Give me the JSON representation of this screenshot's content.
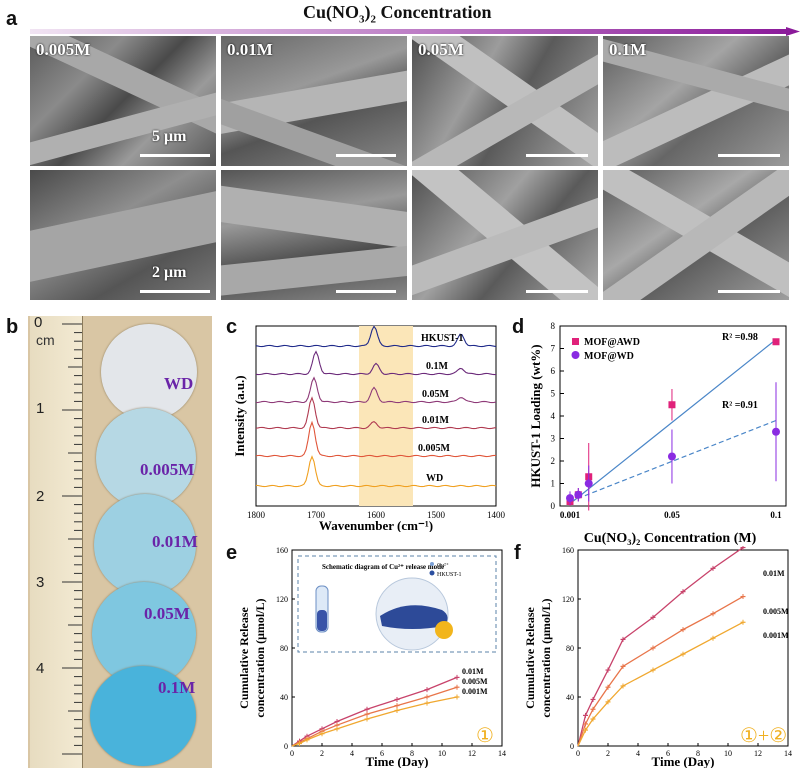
{
  "header": {
    "panel_a": "a",
    "concentration_title_prefix": "Cu(NO",
    "concentration_title_sub": "3",
    "concentration_title_mid": ")",
    "concentration_title_sub2": "2",
    "concentration_title_suffix": " Concentration",
    "arrow_color": "#8b1a9a"
  },
  "sem_panels": {
    "labels": [
      "0.005M",
      "0.01M",
      "0.05M",
      "0.1M"
    ],
    "scale_top": "5 μm",
    "scale_bottom": "2 μm"
  },
  "panel_b": {
    "letter": "b",
    "ruler_unit": "cm",
    "ruler_numbers": [
      "0",
      "1",
      "2",
      "3",
      "4"
    ],
    "discs": [
      "WD",
      "0.005M",
      "0.01M",
      "0.05M",
      "0.1M"
    ],
    "disc_colors": [
      "#e3e6ea",
      "#b6d8e4",
      "#9dd0e2",
      "#7fc7e0",
      "#49b3db"
    ],
    "label_color": "#6a24a8"
  },
  "panel_c": {
    "letter": "c",
    "ylabel": "Intensity (a.u.)",
    "xlabel": "Wavenumber (cm⁻¹)",
    "xticks": [
      "1800",
      "1700",
      "1600",
      "1500",
      "1400"
    ],
    "traces": [
      "HKUST-1",
      "0.1M",
      "0.05M",
      "0.01M",
      "0.005M",
      "WD"
    ],
    "trace_colors": [
      "#1f2a8a",
      "#6b2a7a",
      "#8e3a78",
      "#b03a50",
      "#e0563a",
      "#f0a020"
    ]
  },
  "panel_d": {
    "letter": "d",
    "ylabel": "HKUST-1 Loading (wt%)",
    "xlabel": "Cu(NO₃)₂ Concentration (M)",
    "xticks": [
      "0.001",
      "0.05",
      "0.1"
    ],
    "yticks": [
      "0",
      "1",
      "2",
      "3",
      "4",
      "5",
      "6",
      "7",
      "8"
    ],
    "legend": [
      "MOF@AWD",
      "MOF@WD"
    ],
    "r2_awd": "R² =0.98",
    "r2_wd": "R² =0.91",
    "chart_data": {
      "type": "scatter",
      "series": [
        {
          "name": "MOF@AWD",
          "color": "#e0217a",
          "x": [
            0.001,
            0.005,
            0.01,
            0.05,
            0.1
          ],
          "y": [
            0.2,
            0.5,
            1.3,
            4.5,
            7.3
          ],
          "err": [
            0.2,
            0.3,
            1.5,
            0.7,
            0.0
          ]
        },
        {
          "name": "MOF@WD",
          "color": "#8a2be2",
          "x": [
            0.001,
            0.005,
            0.01,
            0.05,
            0.1
          ],
          "y": [
            0.35,
            0.5,
            1.0,
            2.2,
            3.3
          ],
          "err": [
            0.3,
            0.3,
            0.8,
            1.2,
            2.2
          ]
        }
      ],
      "ylim": [
        0,
        8
      ]
    }
  },
  "panel_e": {
    "letter": "e",
    "ylabel1": "Cumulative Release",
    "ylabel2": "concentration  (μmol/L)",
    "xlabel": "Time (Day)",
    "inset_title": "Schematic diagram of Cu²⁺ release mode",
    "inset_legend": [
      "Cu²⁺",
      "HKUST-1"
    ],
    "mode_label": "①",
    "series_labels": [
      "0.01M",
      "0.005M",
      "0.001M"
    ]
  },
  "panel_f": {
    "letter": "f",
    "ylabel1": "Cumulative Release",
    "ylabel2": "concentration  (μmol/L)",
    "xlabel": "Time (Day)",
    "mode_label": "①+②",
    "series_labels": [
      "0.01M",
      "0.005M",
      "0.001M"
    ]
  },
  "chart_data": [
    {
      "type": "line",
      "title": "",
      "xlabel": "Time (Day)",
      "ylabel": "Cumulative Release concentration (μmol/L)",
      "xlim": [
        0,
        14
      ],
      "ylim": [
        0,
        160
      ],
      "x": [
        0,
        0.5,
        1,
        2,
        3,
        5,
        7,
        9,
        11
      ],
      "series": [
        {
          "name": "0.01M",
          "color": "#c8436b",
          "values": [
            0,
            4,
            8,
            14,
            20,
            30,
            38,
            46,
            56
          ]
        },
        {
          "name": "0.005M",
          "color": "#e8754a",
          "values": [
            0,
            3,
            6,
            12,
            17,
            26,
            33,
            40,
            48
          ]
        },
        {
          "name": "0.001M",
          "color": "#f0a830",
          "values": [
            0,
            2,
            5,
            10,
            14,
            22,
            29,
            35,
            40
          ]
        }
      ]
    },
    {
      "type": "line",
      "title": "",
      "xlabel": "Time (Day)",
      "ylabel": "Cumulative Release concentration (μmol/L)",
      "xlim": [
        0,
        14
      ],
      "ylim": [
        0,
        160
      ],
      "x": [
        0,
        0.5,
        1,
        2,
        3,
        5,
        7,
        9,
        11
      ],
      "series": [
        {
          "name": "0.01M",
          "color": "#c8436b",
          "values": [
            0,
            25,
            38,
            62,
            87,
            105,
            126,
            145,
            162
          ]
        },
        {
          "name": "0.005M",
          "color": "#e8754a",
          "values": [
            0,
            18,
            30,
            48,
            65,
            80,
            95,
            108,
            122
          ]
        },
        {
          "name": "0.001M",
          "color": "#f0a830",
          "values": [
            0,
            13,
            22,
            36,
            49,
            62,
            75,
            88,
            101
          ]
        }
      ]
    }
  ]
}
